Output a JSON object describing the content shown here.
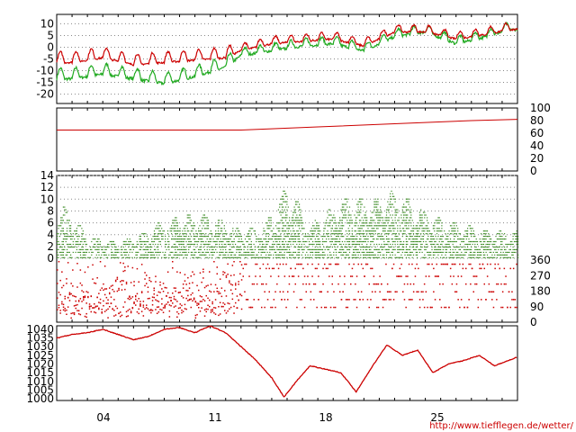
{
  "source_url": "http://www.tiefflegen.de/wetter/",
  "x_axis": {
    "dates": [
      "04",
      "11",
      "18",
      "25"
    ]
  },
  "colors": {
    "primary": "#cc0000",
    "secondary": "#22aa22",
    "grid": "#888888"
  },
  "chart_data": [
    {
      "type": "line",
      "panel": "temperature",
      "yticks": [
        10,
        5,
        0,
        -5,
        -10,
        -15,
        -20
      ],
      "ylim": [
        -24,
        14
      ],
      "grid": true,
      "series": [
        {
          "color": "#cc0000",
          "style": "line"
        },
        {
          "color": "#22aa22",
          "style": "line"
        }
      ],
      "key_points": {
        "red": [
          {
            "day": 1,
            "v": -5
          },
          {
            "day": 3,
            "v": -3
          },
          {
            "day": 5,
            "v": -6
          },
          {
            "day": 7,
            "v": -5
          },
          {
            "day": 9,
            "v": -4
          },
          {
            "day": 11,
            "v": -3
          },
          {
            "day": 12,
            "v": 0
          },
          {
            "day": 14,
            "v": 3
          },
          {
            "day": 16,
            "v": 4
          },
          {
            "day": 18,
            "v": 5
          },
          {
            "day": 20,
            "v": 2
          },
          {
            "day": 22,
            "v": 8
          },
          {
            "day": 24,
            "v": 8
          },
          {
            "day": 26,
            "v": 5
          },
          {
            "day": 28,
            "v": 7
          },
          {
            "day": 29.5,
            "v": 9
          }
        ],
        "green": [
          {
            "day": 1,
            "v": -12
          },
          {
            "day": 3,
            "v": -10
          },
          {
            "day": 5,
            "v": -12
          },
          {
            "day": 7,
            "v": -14
          },
          {
            "day": 9,
            "v": -11
          },
          {
            "day": 11,
            "v": -7
          },
          {
            "day": 12,
            "v": -2
          },
          {
            "day": 14,
            "v": 0
          },
          {
            "day": 16,
            "v": 2
          },
          {
            "day": 18,
            "v": 3
          },
          {
            "day": 20,
            "v": 0
          },
          {
            "day": 22,
            "v": 6
          },
          {
            "day": 24,
            "v": 8
          },
          {
            "day": 26,
            "v": 3
          },
          {
            "day": 28,
            "v": 6
          },
          {
            "day": 29.5,
            "v": 9
          }
        ]
      }
    },
    {
      "type": "line",
      "panel": "percent",
      "yticks": [
        100,
        80,
        60,
        40,
        20,
        0
      ],
      "ylim": [
        0,
        100
      ],
      "grid": false,
      "series": [
        {
          "color": "#cc0000",
          "points": [
            [
              0,
              65
            ],
            [
              12,
              65
            ],
            [
              17,
              70
            ],
            [
              22,
              75
            ],
            [
              27,
              80
            ],
            [
              30,
              82
            ]
          ]
        }
      ]
    },
    {
      "type": "scatter",
      "panel": "wind",
      "yticks": [
        14,
        12,
        10,
        8,
        6,
        4,
        2,
        0
      ],
      "ylim": [
        0,
        14
      ],
      "grid": true,
      "series": [
        {
          "color": "#3a8a22",
          "style": "dots"
        }
      ],
      "peaks": [
        {
          "day": 0.6,
          "v": 9
        },
        {
          "day": 2,
          "v": 4
        },
        {
          "day": 4,
          "v": 3
        },
        {
          "day": 6,
          "v": 5
        },
        {
          "day": 7,
          "v": 7
        },
        {
          "day": 9,
          "v": 8
        },
        {
          "day": 10.5,
          "v": 7
        },
        {
          "day": 12,
          "v": 5
        },
        {
          "day": 13.5,
          "v": 6
        },
        {
          "day": 15,
          "v": 13
        },
        {
          "day": 16.5,
          "v": 6
        },
        {
          "day": 18,
          "v": 9
        },
        {
          "day": 19,
          "v": 11
        },
        {
          "day": 20.5,
          "v": 10
        },
        {
          "day": 22,
          "v": 12
        },
        {
          "day": 23.5,
          "v": 9
        },
        {
          "day": 25,
          "v": 7
        },
        {
          "day": 26.5,
          "v": 6
        },
        {
          "day": 28,
          "v": 5
        },
        {
          "day": 29.5,
          "v": 5
        }
      ]
    },
    {
      "type": "scatter",
      "panel": "wind direction",
      "yticks": [
        360,
        270,
        180,
        90,
        0
      ],
      "ylim": [
        0,
        360
      ],
      "grid": false,
      "series": [
        {
          "color": "#cc0000",
          "style": "bands"
        }
      ]
    },
    {
      "type": "line",
      "panel": "pressure",
      "yticks": [
        1040,
        1035,
        1030,
        1025,
        1020,
        1015,
        1010,
        1005,
        1000
      ],
      "ylim": [
        999,
        1042
      ],
      "grid": false,
      "series": [
        {
          "color": "#cc0000",
          "points": [
            [
              0,
              1035
            ],
            [
              1,
              1037
            ],
            [
              2,
              1038
            ],
            [
              3,
              1040
            ],
            [
              4,
              1037
            ],
            [
              5,
              1034
            ],
            [
              6,
              1036
            ],
            [
              7,
              1040
            ],
            [
              8,
              1041
            ],
            [
              9,
              1038
            ],
            [
              10,
              1042
            ],
            [
              11,
              1038
            ],
            [
              12,
              1030
            ],
            [
              13,
              1022
            ],
            [
              14,
              1012
            ],
            [
              14.8,
              1001
            ],
            [
              15.6,
              1010
            ],
            [
              16.5,
              1019
            ],
            [
              17.5,
              1017
            ],
            [
              18.5,
              1015
            ],
            [
              19.5,
              1004
            ],
            [
              20.5,
              1018
            ],
            [
              21.5,
              1031
            ],
            [
              22.5,
              1025
            ],
            [
              23.5,
              1028
            ],
            [
              24.5,
              1015
            ],
            [
              25.5,
              1020
            ],
            [
              26.5,
              1022
            ],
            [
              27.5,
              1025
            ],
            [
              28.5,
              1019
            ],
            [
              30,
              1024
            ]
          ]
        }
      ]
    }
  ]
}
